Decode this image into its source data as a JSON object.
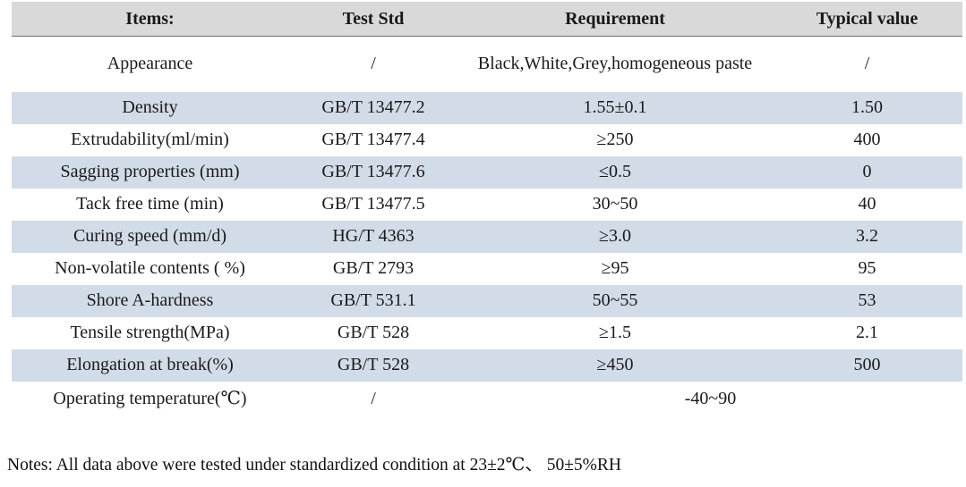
{
  "table": {
    "headers": {
      "items": "Items:",
      "test_std": "Test Std",
      "requirement": "Requirement",
      "typical_value": "Typical value"
    },
    "rows": [
      {
        "item": "Appearance",
        "std": "/",
        "requirement": "Black,White,Grey,homogeneous paste",
        "typical": "/"
      },
      {
        "item": "Density",
        "std": "GB/T 13477.2",
        "requirement": "1.55±0.1",
        "typical": "1.50"
      },
      {
        "item": "Extrudability(ml/min)",
        "std": "GB/T 13477.4",
        "requirement": "≥250",
        "typical": "400"
      },
      {
        "item": "Sagging properties (mm)",
        "std": "GB/T 13477.6",
        "requirement": "≤0.5",
        "typical": "0"
      },
      {
        "item": "Tack free time (min)",
        "std": "GB/T 13477.5",
        "requirement": "30~50",
        "typical": "40"
      },
      {
        "item": "Curing speed (mm/d)",
        "std": "HG/T 4363",
        "requirement": "≥3.0",
        "typical": "3.2"
      },
      {
        "item": "Non-volatile contents ( %)",
        "std": "GB/T 2793",
        "requirement": "≥95",
        "typical": "95"
      },
      {
        "item": "Shore A-hardness",
        "std": "GB/T 531.1",
        "requirement": "50~55",
        "typical": "53"
      },
      {
        "item": "Tensile strength(MPa)",
        "std": "GB/T 528",
        "requirement": "≥1.5",
        "typical": "2.1"
      },
      {
        "item": "Elongation at break(%)",
        "std": "GB/T 528",
        "requirement": "≥450",
        "typical": "500"
      },
      {
        "item": "Operating temperature(℃)",
        "std": "/",
        "requirement": "-40~90"
      }
    ]
  },
  "notes": "Notes: All data above were tested under standardized condition at 23±2℃、 50±5%RH",
  "colors": {
    "header_bg": "#d9d9d9",
    "stripe_bg": "#d2dbe8",
    "text": "#1a1a1a"
  }
}
